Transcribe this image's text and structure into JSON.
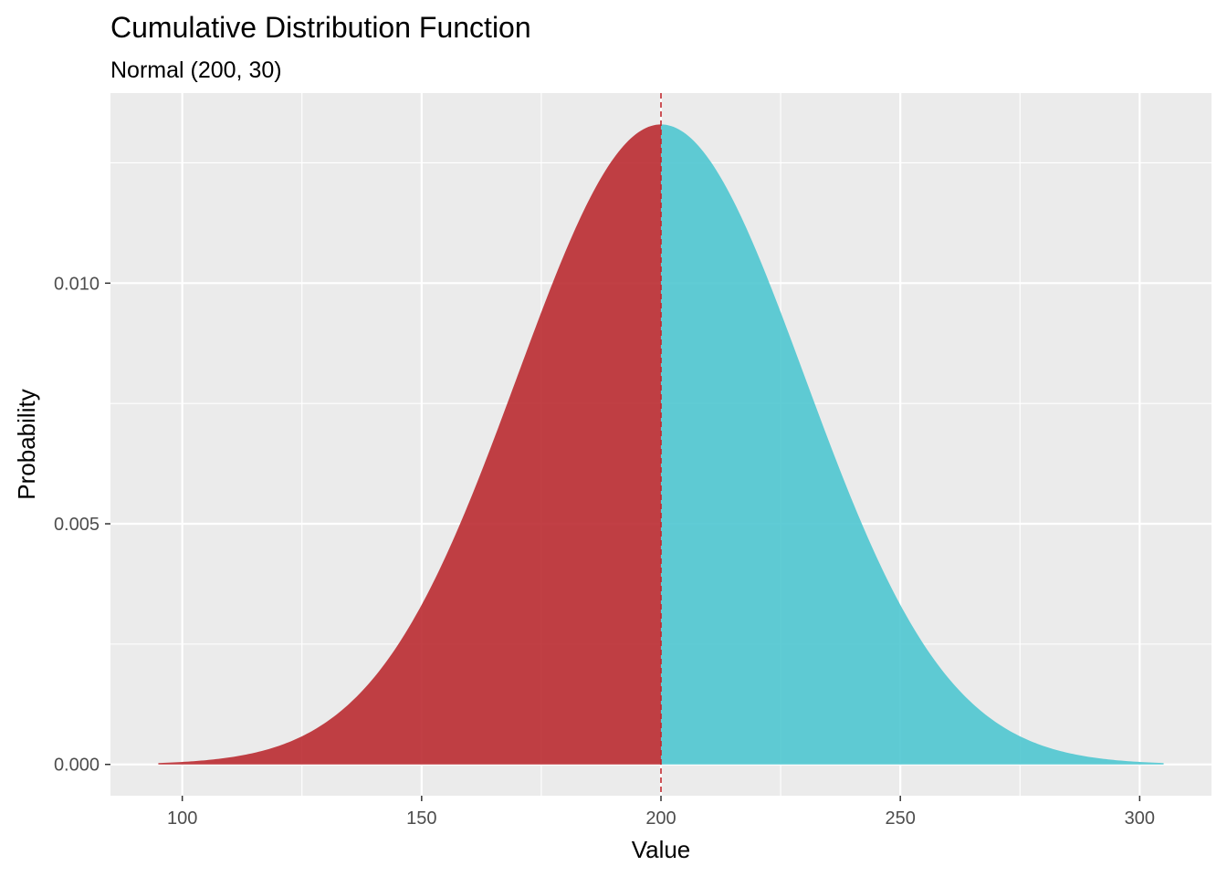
{
  "chart_data": {
    "type": "area",
    "title": "Cumulative Distribution Function",
    "subtitle": "Normal (200, 30)",
    "xlabel": "Value",
    "ylabel": "Probability",
    "distribution": {
      "mean": 200,
      "sd": 30
    },
    "x_range": [
      95,
      305
    ],
    "xlim": [
      85,
      315
    ],
    "ylim": [
      -0.00065,
      0.01395
    ],
    "x_ticks": [
      100,
      150,
      200,
      250,
      300
    ],
    "x_tick_labels": [
      "100",
      "150",
      "200",
      "250",
      "300"
    ],
    "y_ticks": [
      0.0,
      0.005,
      0.01
    ],
    "y_tick_labels": [
      "0.000",
      "0.005",
      "0.010"
    ],
    "grid": true,
    "cutoff": 200,
    "series": [
      {
        "range": [
          95,
          200
        ],
        "color": "#b8252b"
      },
      {
        "range": [
          200,
          305
        ],
        "color": "#4ac5cf"
      }
    ],
    "vline": {
      "x": 200,
      "color": "#c0282d",
      "style": "dashed"
    },
    "panel_background": "#ebebeb",
    "grid_color": "#ffffff"
  }
}
